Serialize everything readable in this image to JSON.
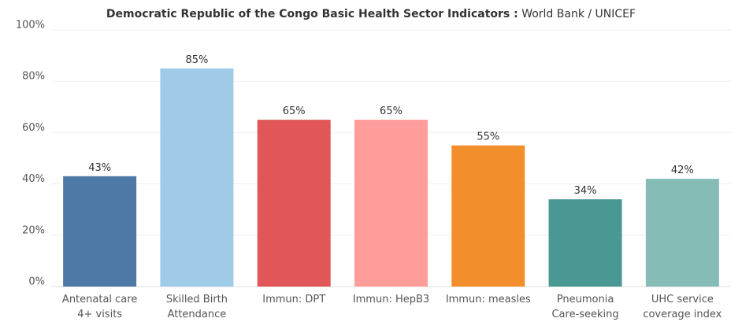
{
  "chart_data": {
    "type": "bar",
    "title": "Democratic Republic of the Congo  Basic Health Sector Indicators :",
    "subtitle": "World Bank / UNICEF",
    "categories": [
      [
        "Antenatal care",
        "4+ visits"
      ],
      [
        "Skilled Birth",
        "Attendance"
      ],
      [
        "Immun: DPT"
      ],
      [
        "Immun: HepB3"
      ],
      [
        "Immun: measles"
      ],
      [
        "Pneumonia",
        "Care-seeking"
      ],
      [
        "UHC service",
        "coverage index"
      ]
    ],
    "values": [
      43,
      85,
      65,
      65,
      55,
      34,
      42
    ],
    "value_labels": [
      "43%",
      "85%",
      "65%",
      "65%",
      "55%",
      "34%",
      "42%"
    ],
    "colors": [
      "#4e79a7",
      "#a0cbe8",
      "#e15759",
      "#ff9d9a",
      "#f28e2b",
      "#499894",
      "#86bcb6"
    ],
    "ylim": [
      0,
      100
    ],
    "yticks": [
      {
        "value": 0,
        "label": "0%"
      },
      {
        "value": 20,
        "label": "20%"
      },
      {
        "value": 40,
        "label": "40%"
      },
      {
        "value": 60,
        "label": "60%"
      },
      {
        "value": 80,
        "label": "80%"
      },
      {
        "value": 100,
        "label": "100%"
      }
    ],
    "grid": true
  }
}
